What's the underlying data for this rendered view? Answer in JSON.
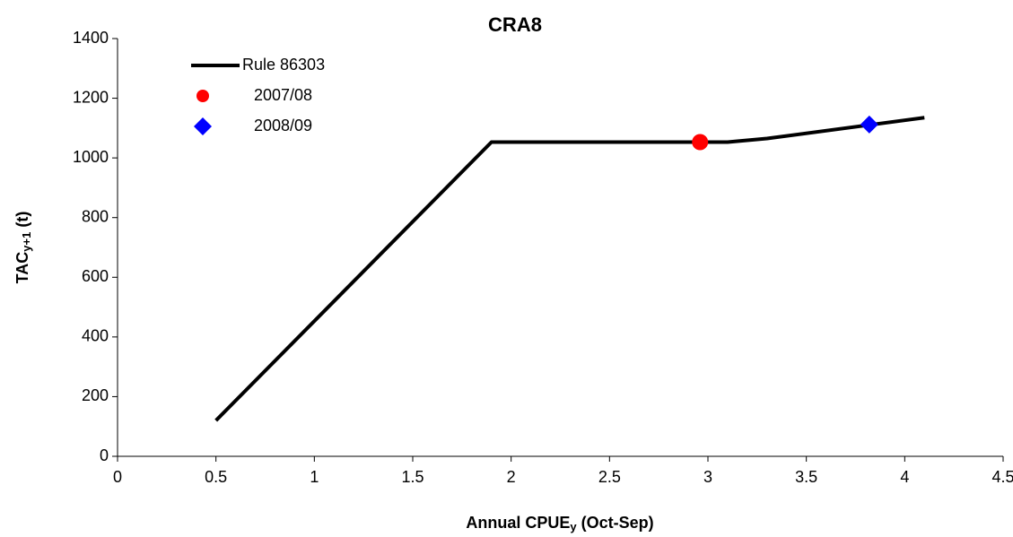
{
  "chart_data": {
    "type": "line",
    "title": "CRA8",
    "x_label": {
      "text": "Annual CPUE",
      "subscript": "y",
      "suffix": " (Oct-Sep)"
    },
    "y_label": {
      "text": "TAC",
      "subscript": "y+1",
      "suffix": " (t)"
    },
    "xlim": [
      0,
      4.5
    ],
    "xticks": [
      0,
      0.5,
      1,
      1.5,
      2,
      2.5,
      3,
      3.5,
      4,
      4.5
    ],
    "ylim": [
      0,
      1400
    ],
    "yticks": [
      0,
      200,
      400,
      600,
      800,
      1000,
      1200,
      1400
    ],
    "grid": false,
    "legend": "top-left",
    "series": [
      {
        "name": "Rule 86303",
        "type": "line",
        "color": "#000000",
        "x": [
          0.5,
          1.9,
          3.1,
          3.3,
          4.1
        ],
        "values": [
          120,
          1053,
          1053,
          1065,
          1135
        ]
      },
      {
        "name": "2007/08",
        "type": "scatter",
        "marker": "circle",
        "color": "#ff0000",
        "x": [
          2.96
        ],
        "values": [
          1053
        ]
      },
      {
        "name": "2008/09",
        "type": "scatter",
        "marker": "diamond",
        "color": "#0000ff",
        "x": [
          3.82
        ],
        "values": [
          1112
        ]
      }
    ]
  }
}
